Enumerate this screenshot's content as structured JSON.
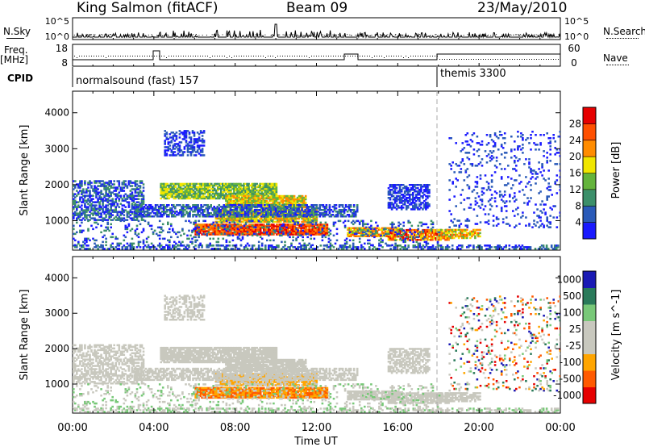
{
  "header": {
    "station": "King Salmon (fitACF)",
    "beam": "Beam 09",
    "date": "23/May/2010"
  },
  "side_labels": {
    "nsky": "N.Sky",
    "nsearch": "N.Search",
    "freq": "Freq.",
    "freq_unit": "[MHz]",
    "nave": "Nave",
    "cpid": "CPID"
  },
  "cpid_segments": [
    {
      "label": "normalsound (fast) 157",
      "start_hour": 0
    },
    {
      "label": "themis 3300",
      "start_hour": 18
    }
  ],
  "colors": {
    "power": [
      "#1a1aff",
      "#2a5ab8",
      "#3c8f6a",
      "#64b43c",
      "#f0e600",
      "#ff8c00",
      "#ff5000",
      "#e60000"
    ],
    "velocity": [
      "#e60000",
      "#ff5a00",
      "#ffa500",
      "#c8c8be",
      "#c8c8be",
      "#78c878",
      "#2a7a5a",
      "#1a1ab4"
    ]
  },
  "chart_data": [
    {
      "type": "line",
      "name": "noise-panel",
      "yticks_left": [
        "10^5",
        "10^0"
      ],
      "yticks_right": [
        "10^5",
        "10^0"
      ],
      "series": [
        {
          "name": "N.Sky"
        },
        {
          "name": "N.Search"
        }
      ]
    },
    {
      "type": "line",
      "name": "freq-panel",
      "yticks_left": [
        18,
        8
      ],
      "yticks_right": [
        60,
        0
      ],
      "series": [
        {
          "name": "Freq."
        },
        {
          "name": "Nave"
        }
      ]
    },
    {
      "type": "heatmap",
      "name": "power-panel",
      "ylabel": "Slant Range [km]",
      "ylim": [
        180,
        4600
      ],
      "yticks": [
        1000,
        2000,
        3000,
        4000
      ],
      "xlim": [
        0,
        24
      ],
      "colorbar": {
        "label": "Power [dB]",
        "ticks": [
          4,
          8,
          12,
          16,
          20,
          24,
          28
        ],
        "range": [
          0,
          32
        ]
      }
    },
    {
      "type": "heatmap",
      "name": "velocity-panel",
      "ylabel": "Slant Range [km]",
      "ylim": [
        180,
        4600
      ],
      "yticks": [
        1000,
        2000,
        3000,
        4000
      ],
      "xlim": [
        0,
        24
      ],
      "xlabel": "Time UT",
      "xticks": [
        "00:00",
        "04:00",
        "08:00",
        "12:00",
        "16:00",
        "20:00",
        "00:00"
      ],
      "colorbar": {
        "label": "Velocity [m s^-1]",
        "ticks": [
          "1000",
          "500",
          "100",
          "25",
          "-25",
          "-100",
          "-500",
          "-1000"
        ]
      }
    }
  ]
}
